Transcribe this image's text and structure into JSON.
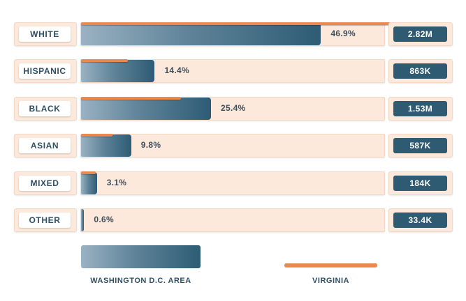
{
  "chart_data": {
    "type": "bar",
    "orientation": "horizontal",
    "categories": [
      "WHITE",
      "HISPANIC",
      "BLACK",
      "ASIAN",
      "MIXED",
      "OTHER"
    ],
    "series": [
      {
        "name": "WASHINGTON D.C. AREA",
        "values": [
          46.9,
          14.4,
          25.4,
          9.8,
          3.1,
          0.6
        ],
        "value_labels": [
          "46.9%",
          "14.4%",
          "25.4%",
          "9.8%",
          "3.1%",
          "0.6%"
        ],
        "counts": [
          "2.82M",
          "863K",
          "1.53M",
          "587K",
          "184K",
          "33.4K"
        ]
      },
      {
        "name": "VIRGINIA",
        "values": [
          62.5,
          9.1,
          19.5,
          6.2,
          2.9,
          0
        ]
      }
    ],
    "xlim": [
      0,
      65
    ],
    "legend_position": "bottom",
    "grid": false
  },
  "colors": {
    "dc_bar_start": "#9ab2c3",
    "dc_bar_end": "#2d5c74",
    "virginia_line": "#e9894f",
    "track": "#fce9dc",
    "count_badge": "#2e5a72"
  }
}
